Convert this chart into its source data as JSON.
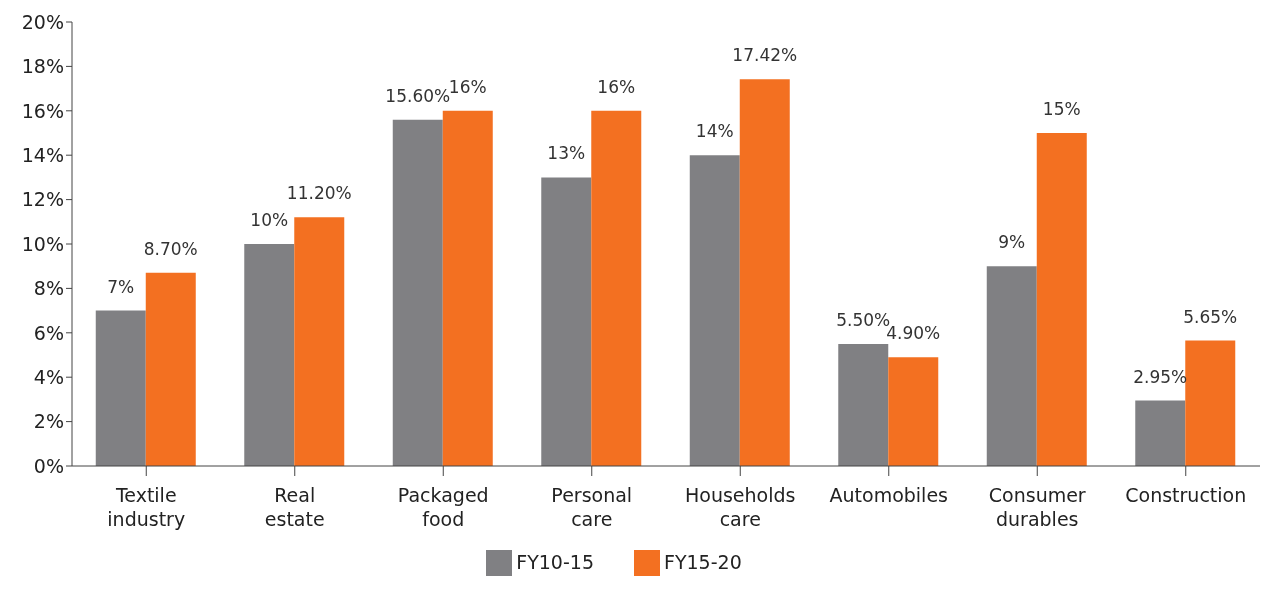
{
  "chart_data": {
    "type": "bar",
    "categories": [
      "Textile industry",
      "Real estate",
      "Packaged food",
      "Personal care",
      "Households care",
      "Automobiles",
      "Consumer durables",
      "Construction"
    ],
    "series": [
      {
        "name": "FY10-15",
        "color": "#808083",
        "values": [
          7,
          10,
          15.6,
          13,
          14,
          5.5,
          9,
          2.95
        ],
        "value_labels": [
          "7%",
          "10%",
          "15.60%",
          "13%",
          "14%",
          "5.50%",
          "9%",
          "2.95%"
        ]
      },
      {
        "name": "FY15-20",
        "color": "#f37021",
        "values": [
          8.7,
          11.2,
          16,
          16,
          17.42,
          4.9,
          15,
          5.65
        ],
        "value_labels": [
          "8.70%",
          "11.20%",
          "16%",
          "16%",
          "17.42%",
          "4.90%",
          "15%",
          "5.65%"
        ]
      }
    ],
    "ylim": [
      0,
      20
    ],
    "yticks": [
      {
        "value": 0,
        "label": "0%"
      },
      {
        "value": 2,
        "label": "2%"
      },
      {
        "value": 4,
        "label": "4%"
      },
      {
        "value": 6,
        "label": "6%"
      },
      {
        "value": 8,
        "label": "8%"
      },
      {
        "value": 10,
        "label": "10%"
      },
      {
        "value": 12,
        "label": "12%"
      },
      {
        "value": 14,
        "label": "14%"
      },
      {
        "value": 16,
        "label": "16%"
      },
      {
        "value": 18,
        "label": "18%"
      },
      {
        "value": 20,
        "label": "20%"
      }
    ],
    "grid": false,
    "legend": "bottom"
  }
}
